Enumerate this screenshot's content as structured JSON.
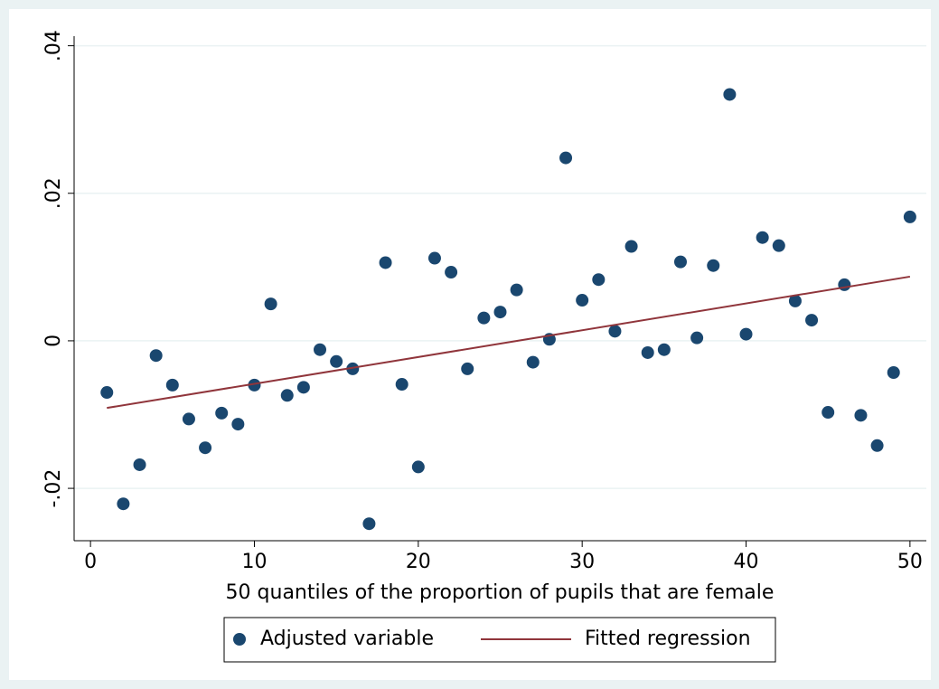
{
  "chart_data": {
    "type": "scatter",
    "xlabel": "50 quantiles of the proportion of pupils that are female",
    "xlim": [
      -1,
      51
    ],
    "xticks": [
      0,
      10,
      20,
      30,
      40,
      50
    ],
    "ylim": [
      -0.0271,
      0.0413
    ],
    "yticks": [
      {
        "value": -0.02,
        "label": "-.02"
      },
      0,
      {
        "value": 0.02,
        "label": ".02"
      },
      {
        "value": 0.04,
        "label": ".04"
      }
    ],
    "grid": true,
    "legend": "bottom",
    "series": [
      {
        "name": "Adjusted variable",
        "color": "#1a476f",
        "style": "marker",
        "x": [
          1,
          2,
          3,
          4,
          5,
          6,
          7,
          8,
          9,
          10,
          11,
          12,
          13,
          14,
          15,
          16,
          17,
          18,
          19,
          20,
          21,
          22,
          23,
          24,
          25,
          26,
          27,
          28,
          29,
          30,
          31,
          32,
          33,
          34,
          35,
          36,
          37,
          38,
          39,
          40,
          41,
          42,
          43,
          44,
          45,
          46,
          47,
          48,
          49,
          50
        ],
        "values": [
          -0.007,
          -0.0221,
          -0.0168,
          -0.002,
          -0.006,
          -0.0106,
          -0.0145,
          -0.0098,
          -0.0113,
          -0.006,
          0.005,
          -0.0074,
          -0.0063,
          -0.0012,
          -0.0028,
          -0.0038,
          -0.0248,
          0.0106,
          -0.0059,
          -0.0171,
          0.0112,
          0.0093,
          -0.0038,
          0.0031,
          0.0039,
          0.0069,
          -0.0029,
          0.0002,
          0.0248,
          0.0055,
          0.0083,
          0.0013,
          0.0128,
          -0.0016,
          -0.0012,
          0.0107,
          0.0004,
          0.0102,
          0.0334,
          0.0009,
          0.014,
          0.0129,
          0.0054,
          0.0028,
          -0.0097,
          0.0076,
          -0.0101,
          -0.0142,
          -0.0043,
          0.0168
        ]
      },
      {
        "name": "Fitted regression",
        "color": "#90353b",
        "style": "line",
        "x": [
          1,
          50
        ],
        "values": [
          -0.0091,
          0.0087
        ]
      }
    ]
  }
}
